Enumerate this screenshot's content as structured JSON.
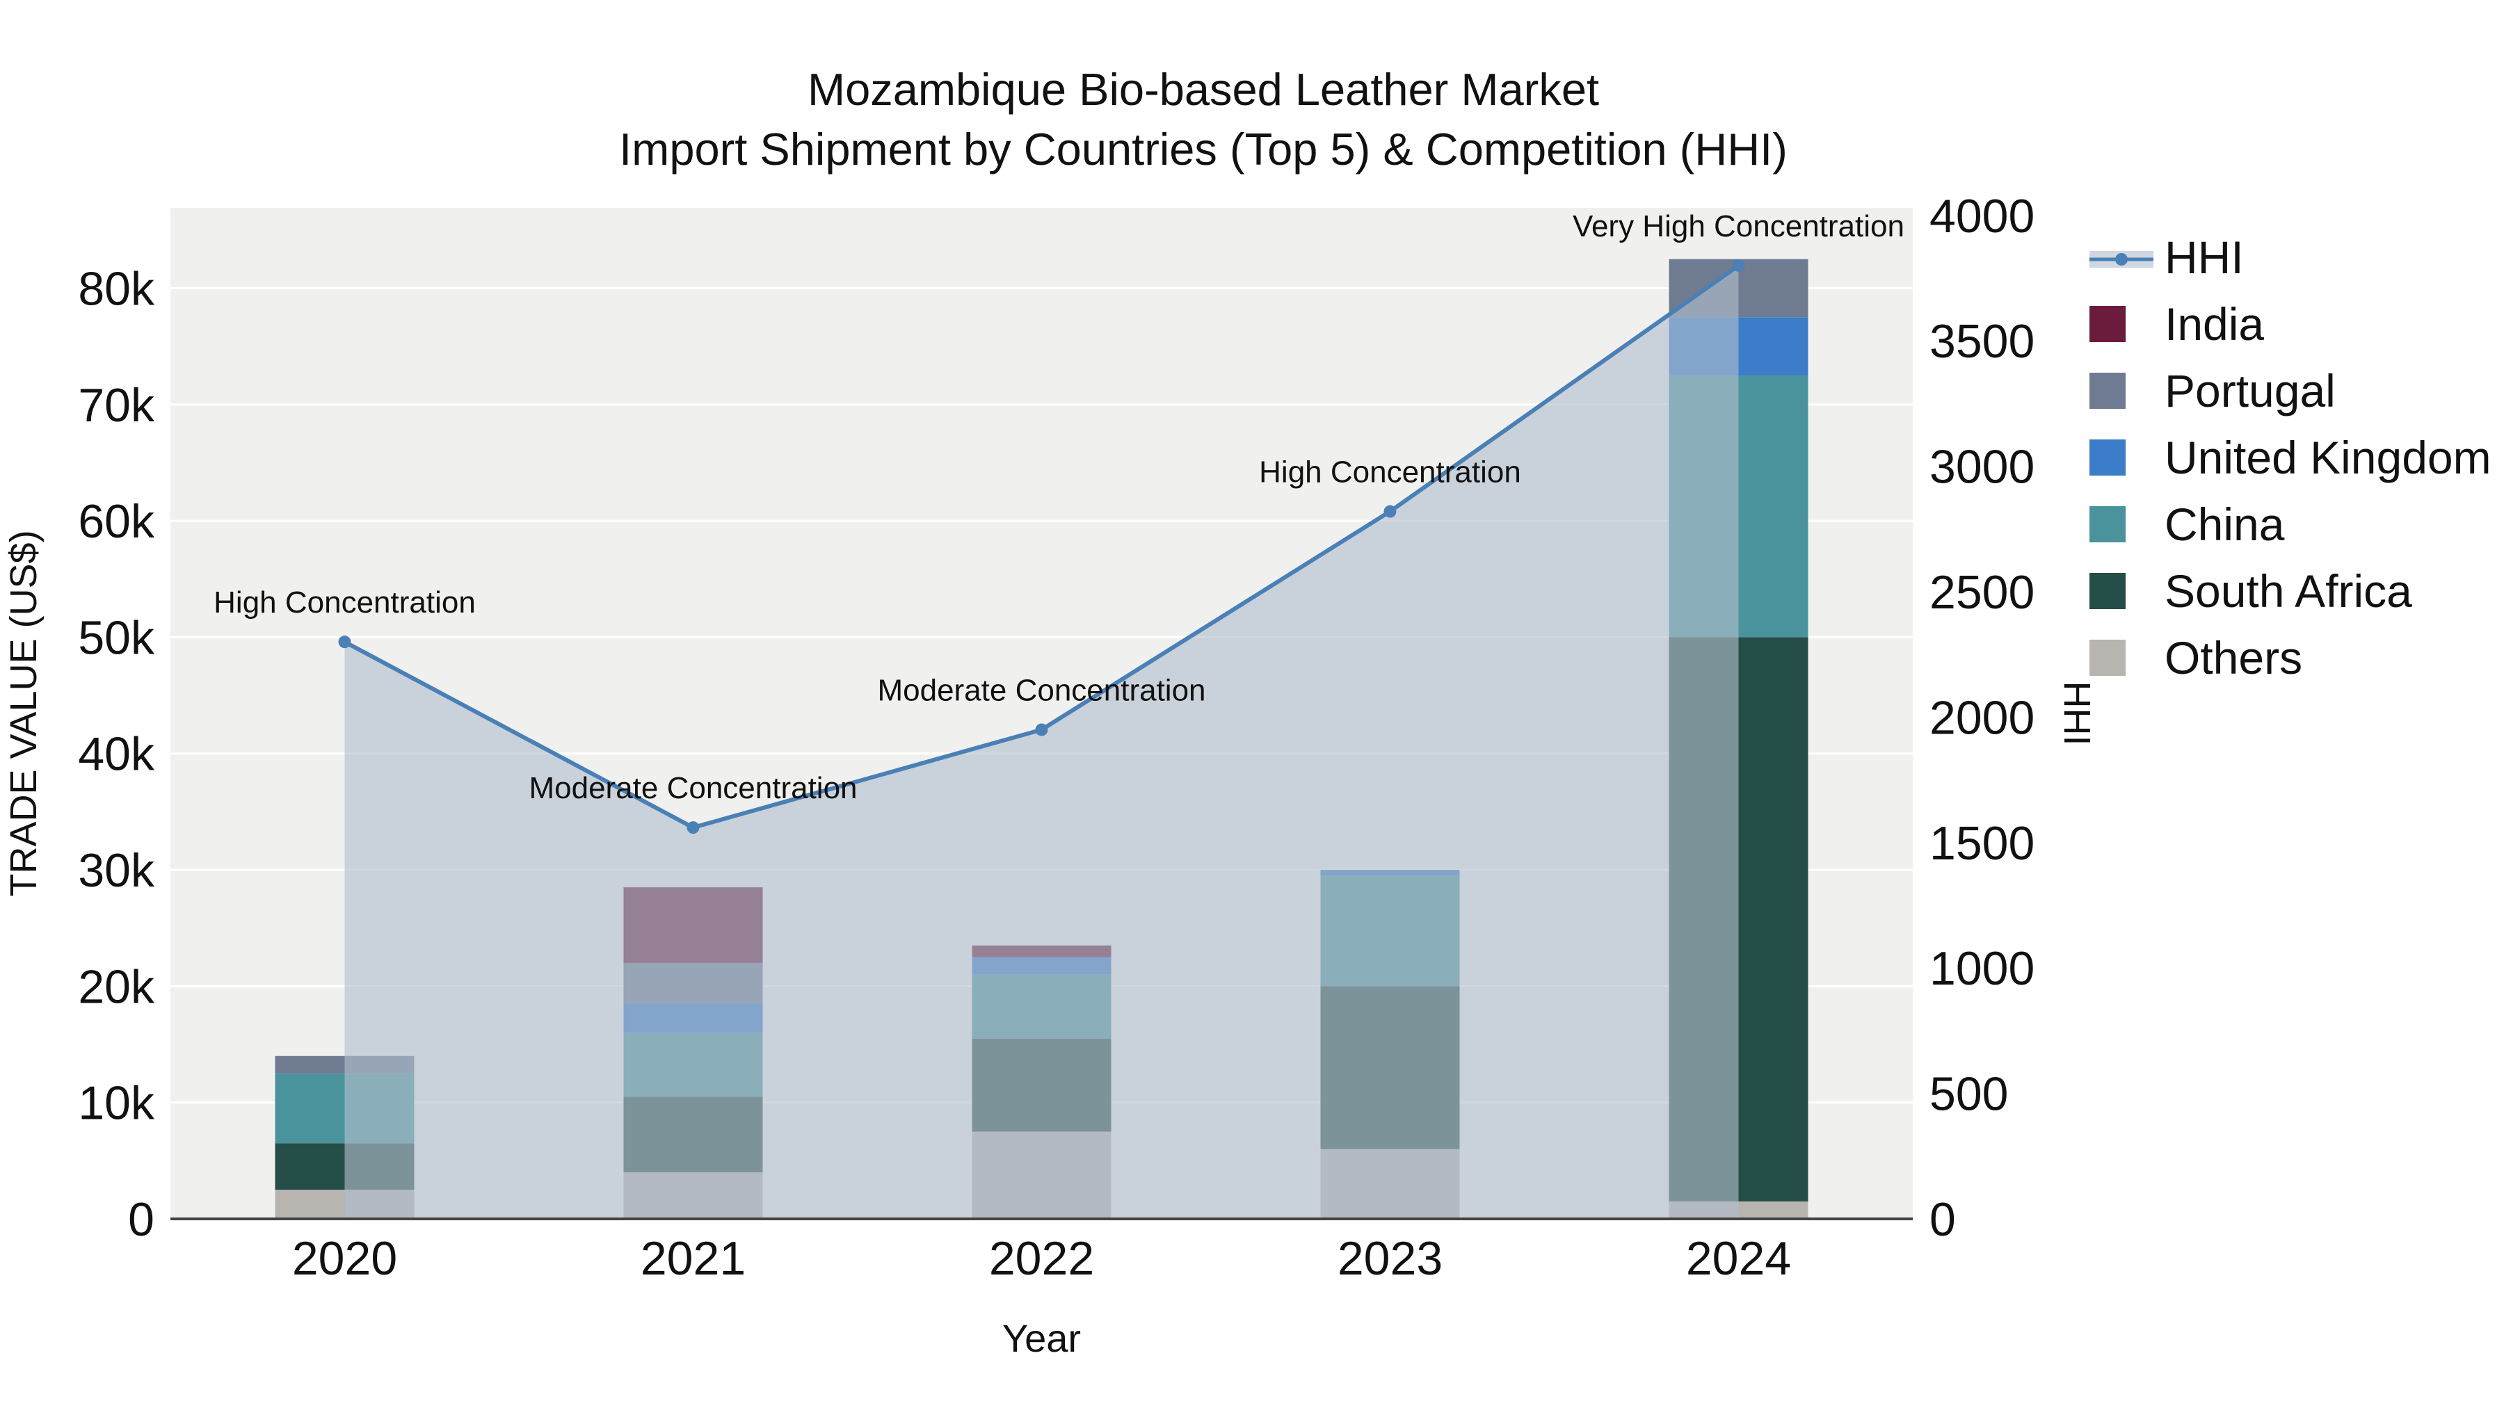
{
  "title": {
    "line1": "Mozambique Bio-based Leather Market",
    "line2": "Import Shipment by Countries (Top 5) & Competition (HHI)"
  },
  "axes": {
    "x_title": "Year",
    "y_left_title": "TRADE VALUE (US$)",
    "y_right_title": "HHI",
    "y_left_ticks": [
      {
        "value": 0,
        "label": "0"
      },
      {
        "value": 10000,
        "label": "10k"
      },
      {
        "value": 20000,
        "label": "20k"
      },
      {
        "value": 30000,
        "label": "30k"
      },
      {
        "value": 40000,
        "label": "40k"
      },
      {
        "value": 50000,
        "label": "50k"
      },
      {
        "value": 60000,
        "label": "60k"
      },
      {
        "value": 70000,
        "label": "70k"
      },
      {
        "value": 80000,
        "label": "80k"
      }
    ],
    "y_right_ticks": [
      {
        "value": 0,
        "label": "0"
      },
      {
        "value": 500,
        "label": "500"
      },
      {
        "value": 1000,
        "label": "1000"
      },
      {
        "value": 1500,
        "label": "1500"
      },
      {
        "value": 2000,
        "label": "2000"
      },
      {
        "value": 2500,
        "label": "2500"
      },
      {
        "value": 3000,
        "label": "3000"
      },
      {
        "value": 3500,
        "label": "3500"
      },
      {
        "value": 4000,
        "label": "4000"
      }
    ]
  },
  "chart_data": {
    "type": "bar+line",
    "title": "Mozambique Bio-based Leather Market — Import Shipment by Countries (Top 5) & Competition (HHI)",
    "categories": [
      "2020",
      "2021",
      "2022",
      "2023",
      "2024"
    ],
    "xlabel": "Year",
    "ylabel_left": "TRADE VALUE (US$)",
    "ylabel_right": "HHI",
    "y_left_range": [
      0,
      86900
    ],
    "y_right_range": [
      0,
      4030
    ],
    "grid": true,
    "legend_position": "right",
    "bar_stack_order_bottom_to_top": [
      "Others",
      "South Africa",
      "China",
      "United Kingdom",
      "Portugal",
      "India"
    ],
    "series": [
      {
        "name": "Others",
        "color": "#b8b4b0",
        "values": [
          2500,
          4000,
          7500,
          6000,
          1500
        ]
      },
      {
        "name": "South Africa",
        "color": "#254e48",
        "values": [
          4000,
          6500,
          8000,
          14000,
          48500
        ]
      },
      {
        "name": "China",
        "color": "#4b939c",
        "values": [
          6000,
          5500,
          5500,
          9500,
          22500
        ]
      },
      {
        "name": "United Kingdom",
        "color": "#3b7dc8",
        "values": [
          0,
          2500,
          1500,
          500,
          5000
        ]
      },
      {
        "name": "Portugal",
        "color": "#6e7b91",
        "values": [
          1500,
          3500,
          0,
          0,
          5000
        ]
      },
      {
        "name": "India",
        "color": "#6b1c3c",
        "values": [
          0,
          6500,
          1000,
          0,
          0
        ]
      }
    ],
    "line_series": {
      "name": "HHI",
      "axis": "right",
      "color": "#4a80b5",
      "area_color": "rgba(178,191,205,0.62)",
      "values": [
        2300,
        1560,
        1950,
        2820,
        3800
      ],
      "annotations": [
        "High Concentration",
        "Moderate Concentration",
        "Moderate Concentration",
        "High Concentration",
        "Very High Concentration"
      ]
    }
  },
  "legend": {
    "items": [
      {
        "label": "HHI",
        "swatch": "line",
        "color": "#4a80b5"
      },
      {
        "label": "India",
        "swatch": "square",
        "color": "#6b1c3c"
      },
      {
        "label": "Portugal",
        "swatch": "square",
        "color": "#6e7b91"
      },
      {
        "label": "United Kingdom",
        "swatch": "square",
        "color": "#3b7dc8"
      },
      {
        "label": "China",
        "swatch": "square",
        "color": "#4b939c"
      },
      {
        "label": "South Africa",
        "swatch": "square",
        "color": "#254e48"
      },
      {
        "label": "Others",
        "swatch": "square",
        "color": "#b8b4b0"
      }
    ]
  },
  "colors": {
    "plot_bg": "#f0f0ef",
    "grid": "#ffffff",
    "axis_line": "#444444",
    "text": "#111111"
  }
}
